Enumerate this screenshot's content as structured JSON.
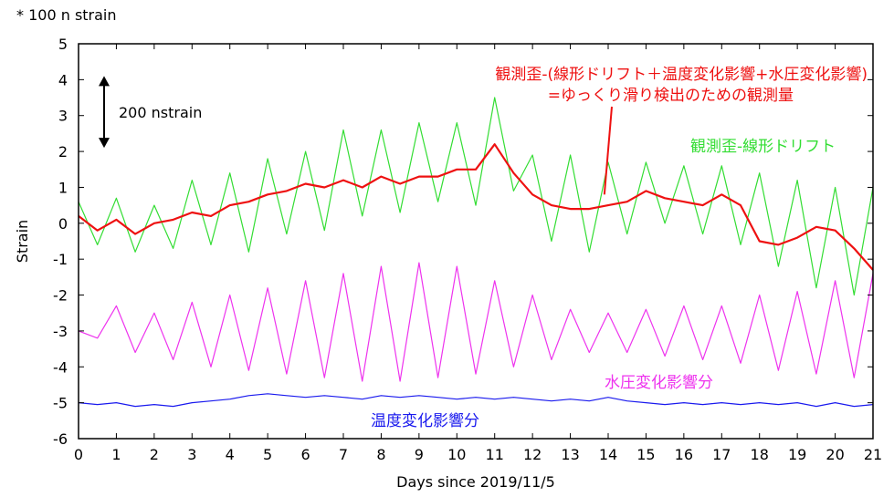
{
  "chart_data": {
    "type": "line",
    "multiplier_note": "* 100 n strain",
    "xlabel": "Days since 2019/11/5",
    "ylabel": "Strain",
    "xlim": [
      0,
      21
    ],
    "ylim": [
      -6,
      5
    ],
    "xticks": [
      0,
      1,
      2,
      3,
      4,
      5,
      6,
      7,
      8,
      9,
      10,
      11,
      12,
      13,
      14,
      15,
      16,
      17,
      18,
      19,
      20,
      21
    ],
    "yticks": [
      5,
      4,
      3,
      2,
      1,
      0,
      -1,
      -2,
      -3,
      -4,
      -5,
      -6
    ],
    "scale_bar_label": "200 nstrain",
    "scale_bar_range": [
      2.1,
      4.1
    ],
    "grid": false,
    "series": [
      {
        "name": "観測歪-線形ドリフト",
        "color": "#33dd33",
        "x": [
          0,
          0.5,
          1,
          1.5,
          2,
          2.5,
          3,
          3.5,
          4,
          4.5,
          5,
          5.5,
          6,
          6.5,
          7,
          7.5,
          8,
          8.5,
          9,
          9.5,
          10,
          10.5,
          11,
          11.5,
          12,
          12.5,
          13,
          13.5,
          14,
          14.5,
          15,
          15.5,
          16,
          16.5,
          17,
          17.5,
          18,
          18.5,
          19,
          19.5,
          20,
          20.5,
          21
        ],
        "y": [
          0.6,
          -0.6,
          0.7,
          -0.8,
          0.5,
          -0.7,
          1.2,
          -0.6,
          1.4,
          -0.8,
          1.8,
          -0.3,
          2.0,
          -0.2,
          2.6,
          0.2,
          2.6,
          0.3,
          2.8,
          0.6,
          2.8,
          0.5,
          3.5,
          0.9,
          1.9,
          -0.5,
          1.9,
          -0.8,
          1.7,
          -0.3,
          1.7,
          0.0,
          1.6,
          -0.3,
          1.6,
          -0.6,
          1.4,
          -1.2,
          1.2,
          -1.8,
          1.0,
          -2.0,
          1.0
        ]
      },
      {
        "name": "観測歪-(線形ドリフト＋温度変化影響+水圧変化影響)",
        "color": "#ee1111",
        "x": [
          0,
          0.5,
          1,
          1.5,
          2,
          2.5,
          3,
          3.5,
          4,
          4.5,
          5,
          5.5,
          6,
          6.5,
          7,
          7.5,
          8,
          8.5,
          9,
          9.5,
          10,
          10.5,
          11,
          11.5,
          12,
          12.5,
          13,
          13.5,
          14,
          14.5,
          15,
          15.5,
          16,
          16.5,
          17,
          17.5,
          18,
          18.5,
          19,
          19.5,
          20,
          20.5,
          21
        ],
        "y": [
          0.2,
          -0.2,
          0.1,
          -0.3,
          0.0,
          0.1,
          0.3,
          0.2,
          0.5,
          0.6,
          0.8,
          0.9,
          1.1,
          1.0,
          1.2,
          1.0,
          1.3,
          1.1,
          1.3,
          1.3,
          1.5,
          1.5,
          2.2,
          1.4,
          0.8,
          0.5,
          0.4,
          0.4,
          0.5,
          0.6,
          0.9,
          0.7,
          0.6,
          0.5,
          0.8,
          0.5,
          -0.5,
          -0.6,
          -0.4,
          -0.1,
          -0.2,
          -0.7,
          -1.3
        ]
      },
      {
        "name": "水圧変化影響分",
        "color": "#ee33ee",
        "x": [
          0,
          0.5,
          1,
          1.5,
          2,
          2.5,
          3,
          3.5,
          4,
          4.5,
          5,
          5.5,
          6,
          6.5,
          7,
          7.5,
          8,
          8.5,
          9,
          9.5,
          10,
          10.5,
          11,
          11.5,
          12,
          12.5,
          13,
          13.5,
          14,
          14.5,
          15,
          15.5,
          16,
          16.5,
          17,
          17.5,
          18,
          18.5,
          19,
          19.5,
          20,
          20.5,
          21
        ],
        "y": [
          -3.0,
          -3.2,
          -2.3,
          -3.6,
          -2.5,
          -3.8,
          -2.2,
          -4.0,
          -2.0,
          -4.1,
          -1.8,
          -4.2,
          -1.6,
          -4.3,
          -1.4,
          -4.4,
          -1.2,
          -4.4,
          -1.1,
          -4.3,
          -1.2,
          -4.2,
          -1.6,
          -4.0,
          -2.0,
          -3.8,
          -2.4,
          -3.6,
          -2.5,
          -3.6,
          -2.4,
          -3.7,
          -2.3,
          -3.8,
          -2.3,
          -3.9,
          -2.0,
          -4.1,
          -1.9,
          -4.2,
          -1.6,
          -4.3,
          -1.4
        ]
      },
      {
        "name": "温度変化影響分",
        "color": "#1a1aee",
        "x": [
          0,
          0.5,
          1,
          1.5,
          2,
          2.5,
          3,
          3.5,
          4,
          4.5,
          5,
          5.5,
          6,
          6.5,
          7,
          7.5,
          8,
          8.5,
          9,
          9.5,
          10,
          10.5,
          11,
          11.5,
          12,
          12.5,
          13,
          13.5,
          14,
          14.5,
          15,
          15.5,
          16,
          16.5,
          17,
          17.5,
          18,
          18.5,
          19,
          19.5,
          20,
          20.5,
          21
        ],
        "y": [
          -5.0,
          -5.05,
          -5.0,
          -5.1,
          -5.05,
          -5.1,
          -5.0,
          -4.95,
          -4.9,
          -4.8,
          -4.75,
          -4.8,
          -4.85,
          -4.8,
          -4.85,
          -4.9,
          -4.8,
          -4.85,
          -4.8,
          -4.85,
          -4.9,
          -4.85,
          -4.9,
          -4.85,
          -4.9,
          -4.95,
          -4.9,
          -4.95,
          -4.85,
          -4.95,
          -5.0,
          -5.05,
          -5.0,
          -5.05,
          -5.0,
          -5.05,
          -5.0,
          -5.05,
          -5.0,
          -5.1,
          -5.0,
          -5.1,
          -5.05
        ]
      }
    ],
    "annotations": [
      {
        "id": "red",
        "text_line1": "観測歪-(線形ドリフト＋温度変化影響+水圧変化影響)",
        "text_line2": "=ゆっくり滑り検出のための観測量",
        "color": "#ee1111",
        "anchor_x": 13.9,
        "anchor_y": 0.8
      },
      {
        "id": "green",
        "text": "観測歪-線形ドリフト",
        "color": "#33dd33"
      },
      {
        "id": "magenta",
        "text": "水圧変化影響分",
        "color": "#ee33ee"
      },
      {
        "id": "blue",
        "text": "温度変化影響分",
        "color": "#1a1aee"
      }
    ]
  }
}
